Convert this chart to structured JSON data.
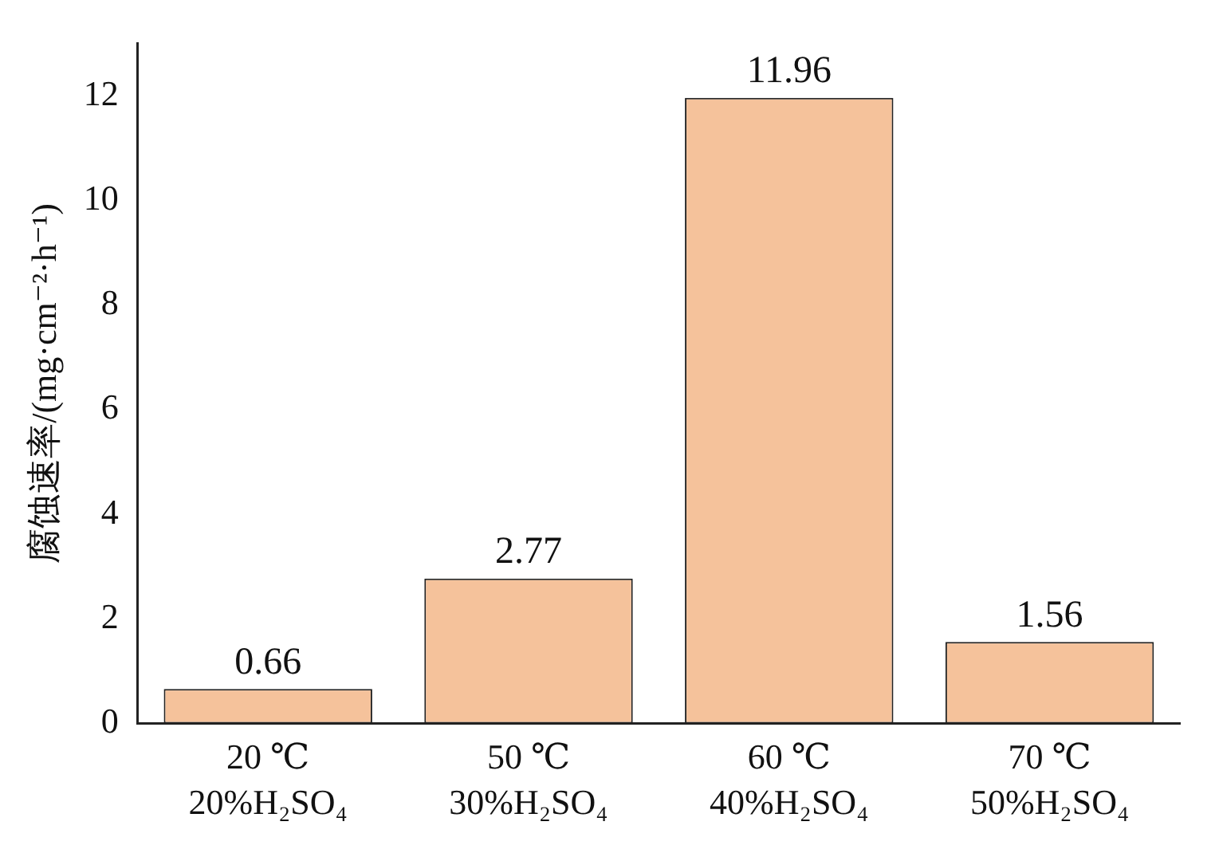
{
  "chart_data": {
    "type": "bar",
    "categories": [
      "20 ℃\n20%H₂SO₄",
      "50 ℃\n30%H₂SO₄",
      "60 ℃\n40%H₂SO₄",
      "70 ℃\n50%H₂SO₄"
    ],
    "values": [
      0.66,
      2.77,
      11.96,
      1.56
    ],
    "color": "#f5c29b",
    "ylabel": "腐蚀速率/(mg·cm⁻²·h⁻¹)",
    "ylim": [
      0,
      13
    ],
    "yticks": [
      0,
      2,
      4,
      6,
      8,
      10,
      12
    ],
    "data_labels": true,
    "grid": false,
    "legend": false
  }
}
